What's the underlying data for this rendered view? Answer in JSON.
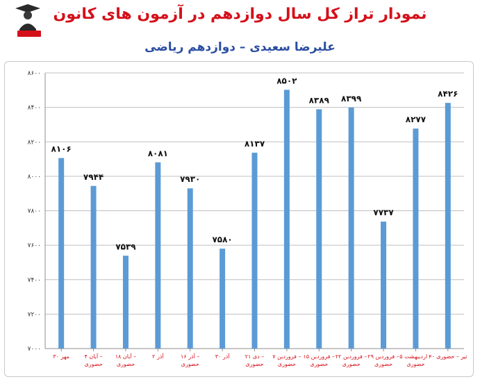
{
  "header": {
    "title": "نمودار تراز کل سال دوازدهم در آزمون های کانون",
    "subtitle": "علیرضا سعیدی – دوازدهم ریاضی"
  },
  "colors": {
    "bar": "#5b9bd5",
    "title": "#d4101a",
    "subtitle": "#2b4ea2",
    "xlabel": "#d4101a"
  },
  "chart_data": {
    "type": "bar",
    "ylim": [
      7000,
      8600
    ],
    "grid": true,
    "yticks": [
      "۷۰۰۰",
      "۷۲۰۰",
      "۷۴۰۰",
      "۷۶۰۰",
      "۷۸۰۰",
      "۸۰۰۰",
      "۸۲۰۰",
      "۸۴۰۰",
      "۸۶۰۰"
    ],
    "categories": [
      [
        "۳۰ مهر",
        ""
      ],
      [
        "۴ آبان –",
        "حضوری"
      ],
      [
        "۱۸ آبان –",
        "حضوری"
      ],
      [
        "۲ آذر",
        ""
      ],
      [
        "۱۶ آذر –",
        "حضوری"
      ],
      [
        "۳۰ آذر",
        ""
      ],
      [
        "۲۱ دی –",
        "حضوری"
      ],
      [
        "۷ فروردین –",
        "حضوری"
      ],
      [
        "۱۵ فروردین –",
        "حضوری"
      ],
      [
        "۲۲ فروردین –",
        "حضوری"
      ],
      [
        "۲۹ فروردین –",
        "حضوری"
      ],
      [
        "۵ اردیبهشت –",
        "حضوری"
      ],
      [
        "۲۰ تیر – حضوری",
        ""
      ]
    ],
    "values": [
      8106,
      7944,
      7539,
      8081,
      7930,
      7580,
      8137,
      8502,
      8389,
      8399,
      7737,
      8277,
      8426
    ],
    "data_labels": [
      "۸۱۰۶",
      "۷۹۴۴",
      "۷۵۳۹",
      "۸۰۸۱",
      "۷۹۳۰",
      "۷۵۸۰",
      "۸۱۳۷",
      "۸۵۰۲",
      "۸۳۸۹",
      "۸۳۹۹",
      "۷۷۳۷",
      "۸۲۷۷",
      "۸۴۲۶"
    ]
  }
}
